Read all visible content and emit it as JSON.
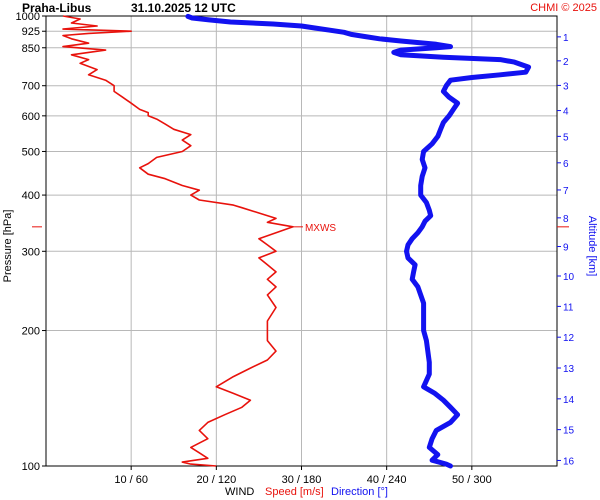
{
  "header": {
    "station": "Praha-Libus",
    "datetime": "31.10.2025 12 UTC",
    "credit": "CHMI © 2025"
  },
  "colors": {
    "speed": "#e8120c",
    "direction": "#1212f0",
    "grid": "#b8b8b8",
    "text": "#000000"
  },
  "chart_data": {
    "type": "line",
    "title": "Praha-Libus   31.10.2025 12 UTC",
    "grid": true,
    "y_axis": {
      "label": "Pressure [hPa]",
      "scale": "log",
      "range": [
        1000,
        100
      ],
      "ticks": [
        100,
        200,
        300,
        400,
        500,
        600,
        700,
        850,
        925,
        1000
      ]
    },
    "y2_axis": {
      "label": "Altitude [km]",
      "ticks": [
        1,
        2,
        3,
        4,
        5,
        6,
        7,
        8,
        9,
        10,
        11,
        12,
        13,
        14,
        15,
        16
      ]
    },
    "x_axis": {
      "label": "WIND",
      "speed_label": "Speed [m/s]",
      "direction_label": "Direction [°]",
      "tick_labels": [
        "10 / 60",
        "20 / 120",
        "30 / 180",
        "40 / 240",
        "50 / 300"
      ],
      "speed_range": [
        0,
        60
      ],
      "direction_range": [
        0,
        360
      ]
    },
    "annotation": {
      "text": "MXWS",
      "pressure": 340
    },
    "series": [
      {
        "name": "Speed [m/s]",
        "unit": "m/s",
        "points": [
          [
            1000,
            2
          ],
          [
            985,
            4
          ],
          [
            965,
            3
          ],
          [
            950,
            6
          ],
          [
            935,
            2
          ],
          [
            925,
            10
          ],
          [
            915,
            5
          ],
          [
            905,
            2
          ],
          [
            890,
            3
          ],
          [
            870,
            5
          ],
          [
            855,
            2
          ],
          [
            840,
            7
          ],
          [
            820,
            3
          ],
          [
            800,
            5
          ],
          [
            785,
            4
          ],
          [
            760,
            6
          ],
          [
            740,
            5
          ],
          [
            720,
            7
          ],
          [
            700,
            8
          ],
          [
            680,
            8
          ],
          [
            660,
            9
          ],
          [
            640,
            10
          ],
          [
            620,
            11
          ],
          [
            610,
            12
          ],
          [
            600,
            12
          ],
          [
            590,
            13
          ],
          [
            575,
            14
          ],
          [
            560,
            15
          ],
          [
            545,
            17
          ],
          [
            530,
            16
          ],
          [
            515,
            17
          ],
          [
            500,
            16
          ],
          [
            485,
            13
          ],
          [
            470,
            12
          ],
          [
            460,
            11
          ],
          [
            445,
            12
          ],
          [
            435,
            14
          ],
          [
            420,
            16
          ],
          [
            410,
            18
          ],
          [
            400,
            17
          ],
          [
            390,
            18
          ],
          [
            380,
            22
          ],
          [
            375,
            23
          ],
          [
            365,
            25
          ],
          [
            355,
            27
          ],
          [
            348,
            26
          ],
          [
            340,
            29
          ],
          [
            330,
            27
          ],
          [
            320,
            25
          ],
          [
            310,
            26
          ],
          [
            300,
            27
          ],
          [
            290,
            25
          ],
          [
            280,
            26
          ],
          [
            270,
            27
          ],
          [
            260,
            26
          ],
          [
            250,
            27
          ],
          [
            240,
            26
          ],
          [
            225,
            27
          ],
          [
            210,
            26
          ],
          [
            200,
            26
          ],
          [
            190,
            26
          ],
          [
            180,
            27
          ],
          [
            172,
            26
          ],
          [
            165,
            24
          ],
          [
            158,
            22
          ],
          [
            150,
            20
          ],
          [
            145,
            22
          ],
          [
            140,
            24
          ],
          [
            135,
            23
          ],
          [
            130,
            21
          ],
          [
            125,
            19
          ],
          [
            120,
            18
          ],
          [
            115,
            19
          ],
          [
            110,
            17
          ],
          [
            107,
            18
          ],
          [
            104,
            19
          ],
          [
            102,
            16
          ],
          [
            101,
            17
          ],
          [
            100,
            20
          ]
        ]
      },
      {
        "name": "Direction [°]",
        "unit": "deg",
        "points": [
          [
            998,
            100
          ],
          [
            990,
            103
          ],
          [
            980,
            115
          ],
          [
            970,
            130
          ],
          [
            960,
            160
          ],
          [
            950,
            180
          ],
          [
            940,
            190
          ],
          [
            930,
            200
          ],
          [
            920,
            210
          ],
          [
            910,
            215
          ],
          [
            900,
            225
          ],
          [
            890,
            235
          ],
          [
            880,
            250
          ],
          [
            865,
            275
          ],
          [
            855,
            285
          ],
          [
            850,
            275
          ],
          [
            840,
            250
          ],
          [
            830,
            245
          ],
          [
            820,
            250
          ],
          [
            810,
            280
          ],
          [
            800,
            320
          ],
          [
            790,
            330
          ],
          [
            770,
            340
          ],
          [
            750,
            338
          ],
          [
            740,
            320
          ],
          [
            730,
            300
          ],
          [
            720,
            285
          ],
          [
            700,
            282
          ],
          [
            680,
            280
          ],
          [
            660,
            284
          ],
          [
            640,
            290
          ],
          [
            620,
            287
          ],
          [
            600,
            284
          ],
          [
            580,
            280
          ],
          [
            560,
            278
          ],
          [
            540,
            276
          ],
          [
            520,
            272
          ],
          [
            500,
            266
          ],
          [
            480,
            265
          ],
          [
            460,
            267
          ],
          [
            440,
            265
          ],
          [
            420,
            264
          ],
          [
            400,
            264
          ],
          [
            385,
            268
          ],
          [
            370,
            270
          ],
          [
            360,
            271
          ],
          [
            350,
            267
          ],
          [
            340,
            265
          ],
          [
            330,
            262
          ],
          [
            320,
            258
          ],
          [
            310,
            255
          ],
          [
            300,
            254
          ],
          [
            290,
            255
          ],
          [
            280,
            260
          ],
          [
            270,
            259
          ],
          [
            260,
            258
          ],
          [
            250,
            262
          ],
          [
            240,
            264
          ],
          [
            230,
            266
          ],
          [
            220,
            266
          ],
          [
            210,
            266
          ],
          [
            200,
            266
          ],
          [
            190,
            268
          ],
          [
            180,
            269
          ],
          [
            170,
            270
          ],
          [
            160,
            270
          ],
          [
            150,
            266
          ],
          [
            145,
            274
          ],
          [
            140,
            280
          ],
          [
            135,
            285
          ],
          [
            130,
            290
          ],
          [
            125,
            285
          ],
          [
            120,
            275
          ],
          [
            115,
            272
          ],
          [
            110,
            270
          ],
          [
            106,
            276
          ],
          [
            103,
            272
          ],
          [
            101,
            282
          ],
          [
            100,
            285
          ]
        ]
      }
    ]
  }
}
